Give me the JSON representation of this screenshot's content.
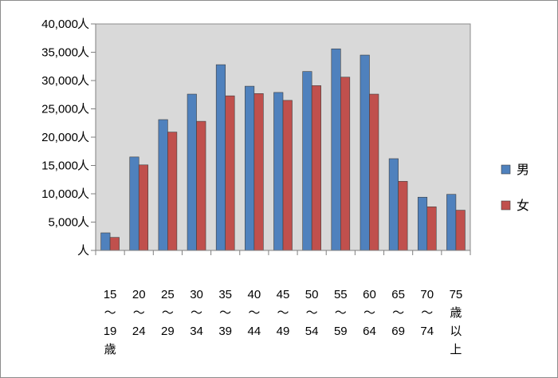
{
  "chart_data": {
    "type": "bar",
    "categories": [
      [
        "15",
        "〜",
        "19",
        "歳"
      ],
      [
        "20",
        "〜",
        "24"
      ],
      [
        "25",
        "〜",
        "29"
      ],
      [
        "30",
        "〜",
        "34"
      ],
      [
        "35",
        "〜",
        "39"
      ],
      [
        "40",
        "〜",
        "44"
      ],
      [
        "45",
        "〜",
        "49"
      ],
      [
        "50",
        "〜",
        "54"
      ],
      [
        "55",
        "〜",
        "59"
      ],
      [
        "60",
        "〜",
        "64"
      ],
      [
        "65",
        "〜",
        "69"
      ],
      [
        "70",
        "〜",
        "74"
      ],
      [
        "75",
        "歳",
        "以",
        "上"
      ]
    ],
    "series": [
      {
        "name": "男",
        "color": "#4f81bd",
        "values": [
          3100,
          16500,
          23100,
          27600,
          32800,
          29000,
          27900,
          31600,
          35600,
          34500,
          16200,
          9400,
          9900
        ]
      },
      {
        "name": "女",
        "color": "#c0504d",
        "values": [
          2300,
          15100,
          20900,
          22800,
          27300,
          27700,
          26500,
          29100,
          30600,
          27600,
          12200,
          7700,
          7100
        ]
      }
    ],
    "yticks": [
      "人",
      "5,000人",
      "10,000人",
      "15,000人",
      "20,000人",
      "25,000人",
      "30,000人",
      "35,000人",
      "40,000人"
    ],
    "ylim": [
      0,
      40000
    ],
    "ystep": 5000,
    "grid": false,
    "legend_position": "right",
    "plot_background": "#d9d9d9"
  }
}
